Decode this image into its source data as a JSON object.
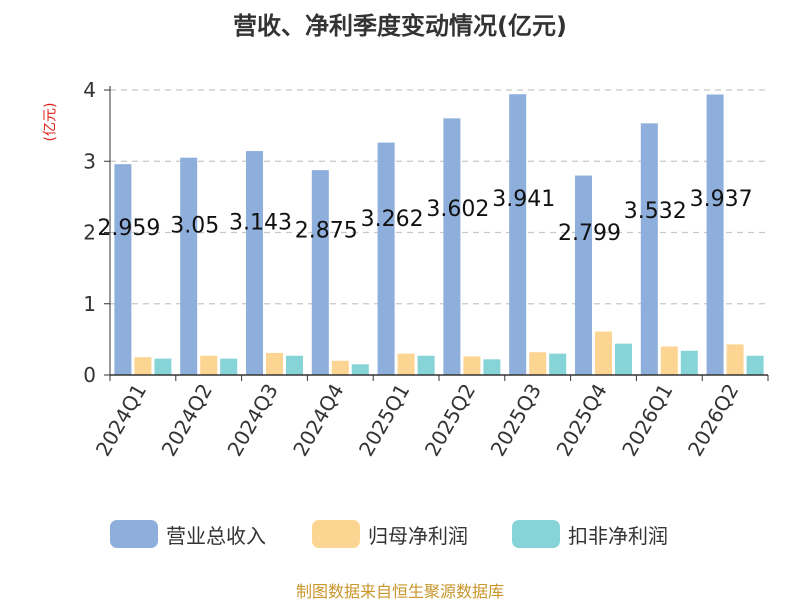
{
  "title": "营收、净利季度变动情况(亿元)",
  "unit_label": "(亿元)",
  "source": "制图数据来自恒生聚源数据库",
  "colors": {
    "revenue": "#8eaedb",
    "net_profit": "#fdd592",
    "deducted_profit": "#86d4d8",
    "grid": "#c8c8c8",
    "axis": "#333333",
    "unit": "#e0201b",
    "source": "#c8962a"
  },
  "chart_data": {
    "type": "bar",
    "title": "营收、净利季度变动情况(亿元)",
    "ylabel": "(亿元)",
    "xlabel": "",
    "ylim": [
      0,
      4
    ],
    "yticks": [
      "0",
      "1",
      "2",
      "3",
      "4"
    ],
    "grid": true,
    "legend_position": "bottom",
    "categories": [
      "2024Q1",
      "2024Q2",
      "2024Q3",
      "2024Q4",
      "2025Q1",
      "2025Q2",
      "2025Q3",
      "2025Q4",
      "2026Q1",
      "2026Q2"
    ],
    "series": [
      {
        "name": "营业总收入",
        "values": [
          2.959,
          3.05,
          3.143,
          2.875,
          3.262,
          3.602,
          3.941,
          2.799,
          3.532,
          3.937
        ],
        "labels": [
          "2.959",
          "3.05",
          "3.143",
          "2.875",
          "3.262",
          "3.602",
          "3.941",
          "2.799",
          "3.532",
          "3.937"
        ]
      },
      {
        "name": "归母净利润",
        "values": [
          0.25,
          0.27,
          0.31,
          0.2,
          0.3,
          0.26,
          0.32,
          0.61,
          0.4,
          0.43
        ]
      },
      {
        "name": "扣非净利润",
        "values": [
          0.23,
          0.23,
          0.27,
          0.15,
          0.27,
          0.22,
          0.3,
          0.44,
          0.34,
          0.27
        ]
      }
    ]
  }
}
